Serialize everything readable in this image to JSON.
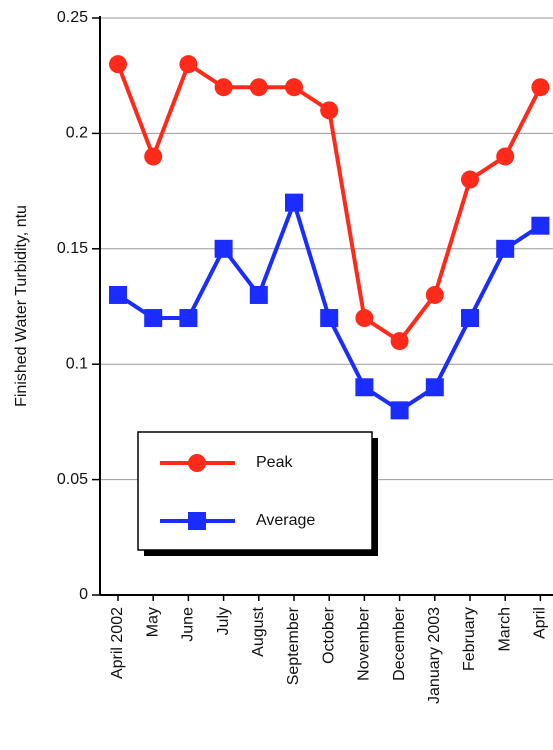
{
  "chart_data": {
    "type": "line",
    "ylabel": "Finished Water Turbidity, ntu",
    "categories": [
      "April 2002",
      "May",
      "June",
      "July",
      "August",
      "September",
      "October",
      "November",
      "December",
      "January 2003",
      "February",
      "March",
      "April"
    ],
    "series": [
      {
        "name": "Peak",
        "color": "#ff2a1a",
        "marker": "circle",
        "values": [
          0.23,
          0.19,
          0.23,
          0.22,
          0.22,
          0.22,
          0.21,
          0.12,
          0.11,
          0.13,
          0.18,
          0.19,
          0.22
        ]
      },
      {
        "name": "Average",
        "color": "#1a2cff",
        "marker": "square",
        "values": [
          0.13,
          0.12,
          0.12,
          0.15,
          0.13,
          0.17,
          0.12,
          0.09,
          0.08,
          0.09,
          0.12,
          0.15,
          0.16
        ]
      }
    ],
    "ylim": [
      0,
      0.25
    ],
    "yticks": [
      0,
      0.05,
      0.1,
      0.15,
      0.2,
      0.25
    ],
    "grid": true,
    "legend_loc": "lower left"
  }
}
